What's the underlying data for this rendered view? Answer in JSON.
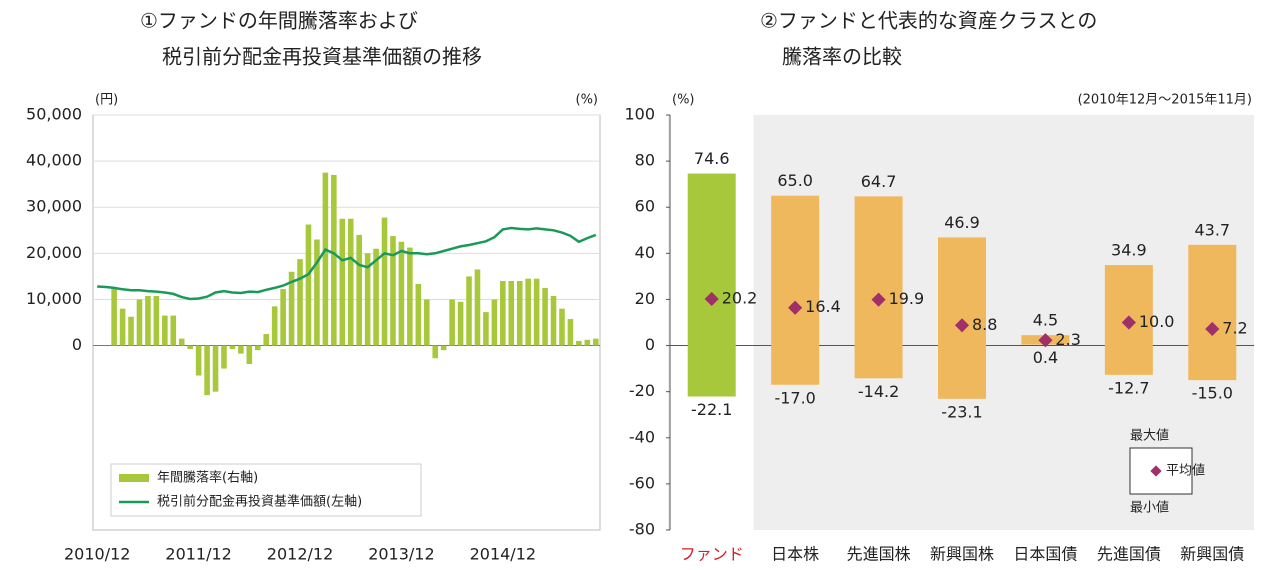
{
  "chart_data": [
    {
      "type": "combo",
      "title": [
        "①ファンドの年間騰落率および",
        "税引前分配金再投資基準価額の推移"
      ],
      "y_unit_label": "(円)",
      "y2_unit_label": "(%)",
      "categories": [
        "2010/12",
        null,
        null,
        null,
        null,
        null,
        null,
        null,
        null,
        null,
        null,
        null,
        "2011/12",
        null,
        null,
        null,
        null,
        null,
        null,
        null,
        null,
        null,
        null,
        null,
        "2012/12",
        null,
        null,
        null,
        null,
        null,
        null,
        null,
        null,
        null,
        null,
        null,
        "2013/12",
        null,
        null,
        null,
        null,
        null,
        null,
        null,
        null,
        null,
        null,
        null,
        "2014/12",
        null,
        null,
        null,
        null,
        null,
        null,
        null,
        null,
        null,
        null,
        null
      ],
      "ylim": [
        -40000,
        50000
      ],
      "yticks": [
        0,
        {
          "value": 10000,
          "label": "10,000"
        },
        {
          "value": 20000,
          "label": "20,000"
        },
        {
          "value": 30000,
          "label": "30,000"
        },
        {
          "value": 40000,
          "label": "40,000"
        },
        {
          "value": 50000,
          "label": "50,000"
        }
      ],
      "y2lim": [
        -80,
        100
      ],
      "grid": true,
      "legend": "bottom-left",
      "series": [
        {
          "name": "年間騰落率(右軸)",
          "color": "#a8c83c",
          "axis": "y2",
          "type": "bar",
          "values": [
            null,
            null,
            24.6,
            16,
            12.5,
            20,
            21.5,
            21.5,
            13,
            13,
            3,
            -1.5,
            -13,
            -21.5,
            -20,
            -10,
            -1.5,
            -3.5,
            -8,
            -2,
            5,
            17,
            24.5,
            32,
            37.5,
            52.5,
            46,
            75,
            74,
            55,
            55,
            48,
            40,
            42,
            55.5,
            47.5,
            45,
            42.5,
            26.7,
            20,
            -5.5,
            -2,
            20,
            19,
            30,
            33,
            14.5,
            20,
            28,
            28,
            28,
            29,
            29,
            25,
            21.5,
            16,
            11.5,
            2,
            2.5,
            3
          ]
        },
        {
          "name": "税引前分配金再投資基準価額(左軸)",
          "color": "#1a9a5a",
          "type": "line",
          "values": [
            12800,
            12700,
            12500,
            12200,
            12000,
            12000,
            11800,
            11700,
            11500,
            11200,
            10500,
            10100,
            10200,
            10600,
            11500,
            11800,
            11500,
            11400,
            11700,
            11600,
            12100,
            12500,
            13000,
            13800,
            14500,
            15500,
            18000,
            20800,
            20000,
            18500,
            19000,
            17500,
            17000,
            18500,
            20000,
            19600,
            20500,
            20000,
            20000,
            19800,
            20000,
            20500,
            21000,
            21500,
            21800,
            22200,
            22600,
            23500,
            25200,
            25500,
            25300,
            25200,
            25400,
            25200,
            25000,
            24500,
            23800,
            22500,
            23300,
            24000
          ]
        }
      ]
    },
    {
      "type": "range",
      "title": [
        "②ファンドと代表的な資産クラスとの",
        "騰落率の比較"
      ],
      "y_unit_label": "(%)",
      "period": "(2010年12月～2015年11月)",
      "categories": [
        "ファンド",
        "日本株",
        "先進国株",
        "新興国株",
        "日本国債",
        "先進国債",
        "新興国債"
      ],
      "category_colors": [
        "#d0202c",
        "#222222",
        "#222222",
        "#222222",
        "#222222",
        "#222222",
        "#222222"
      ],
      "colors": [
        "#a8c83c",
        "#f0b85c",
        "#f0b85c",
        "#f0b85c",
        "#f0b85c",
        "#f0b85c",
        "#f0b85c"
      ],
      "ylim": [
        -80,
        100
      ],
      "yticks": [
        -80,
        -60,
        -40,
        -20,
        0,
        20,
        40,
        60,
        80,
        100
      ],
      "series": [
        {
          "name": "最大値",
          "values": [
            74.6,
            65.0,
            64.7,
            46.9,
            4.5,
            34.9,
            43.7
          ],
          "value_labels": [
            "74.6",
            "65.0",
            "64.7",
            "46.9",
            "4.5",
            "34.9",
            "43.7"
          ]
        },
        {
          "name": "平均値",
          "color": "#a0306a",
          "values": [
            20.2,
            16.4,
            19.9,
            8.8,
            2.3,
            10.0,
            7.2
          ],
          "value_labels": [
            "20.2",
            "16.4",
            "19.9",
            "8.8",
            "2.3",
            "10.0",
            "7.2"
          ]
        },
        {
          "name": "最小値",
          "values": [
            -22.1,
            -17.0,
            -14.2,
            -23.1,
            0.4,
            -12.7,
            -15.0
          ],
          "value_labels": [
            "-22.1",
            "-17.0",
            "-14.2",
            "-23.1",
            "0.4",
            "-12.7",
            "-15.0"
          ]
        }
      ]
    }
  ]
}
